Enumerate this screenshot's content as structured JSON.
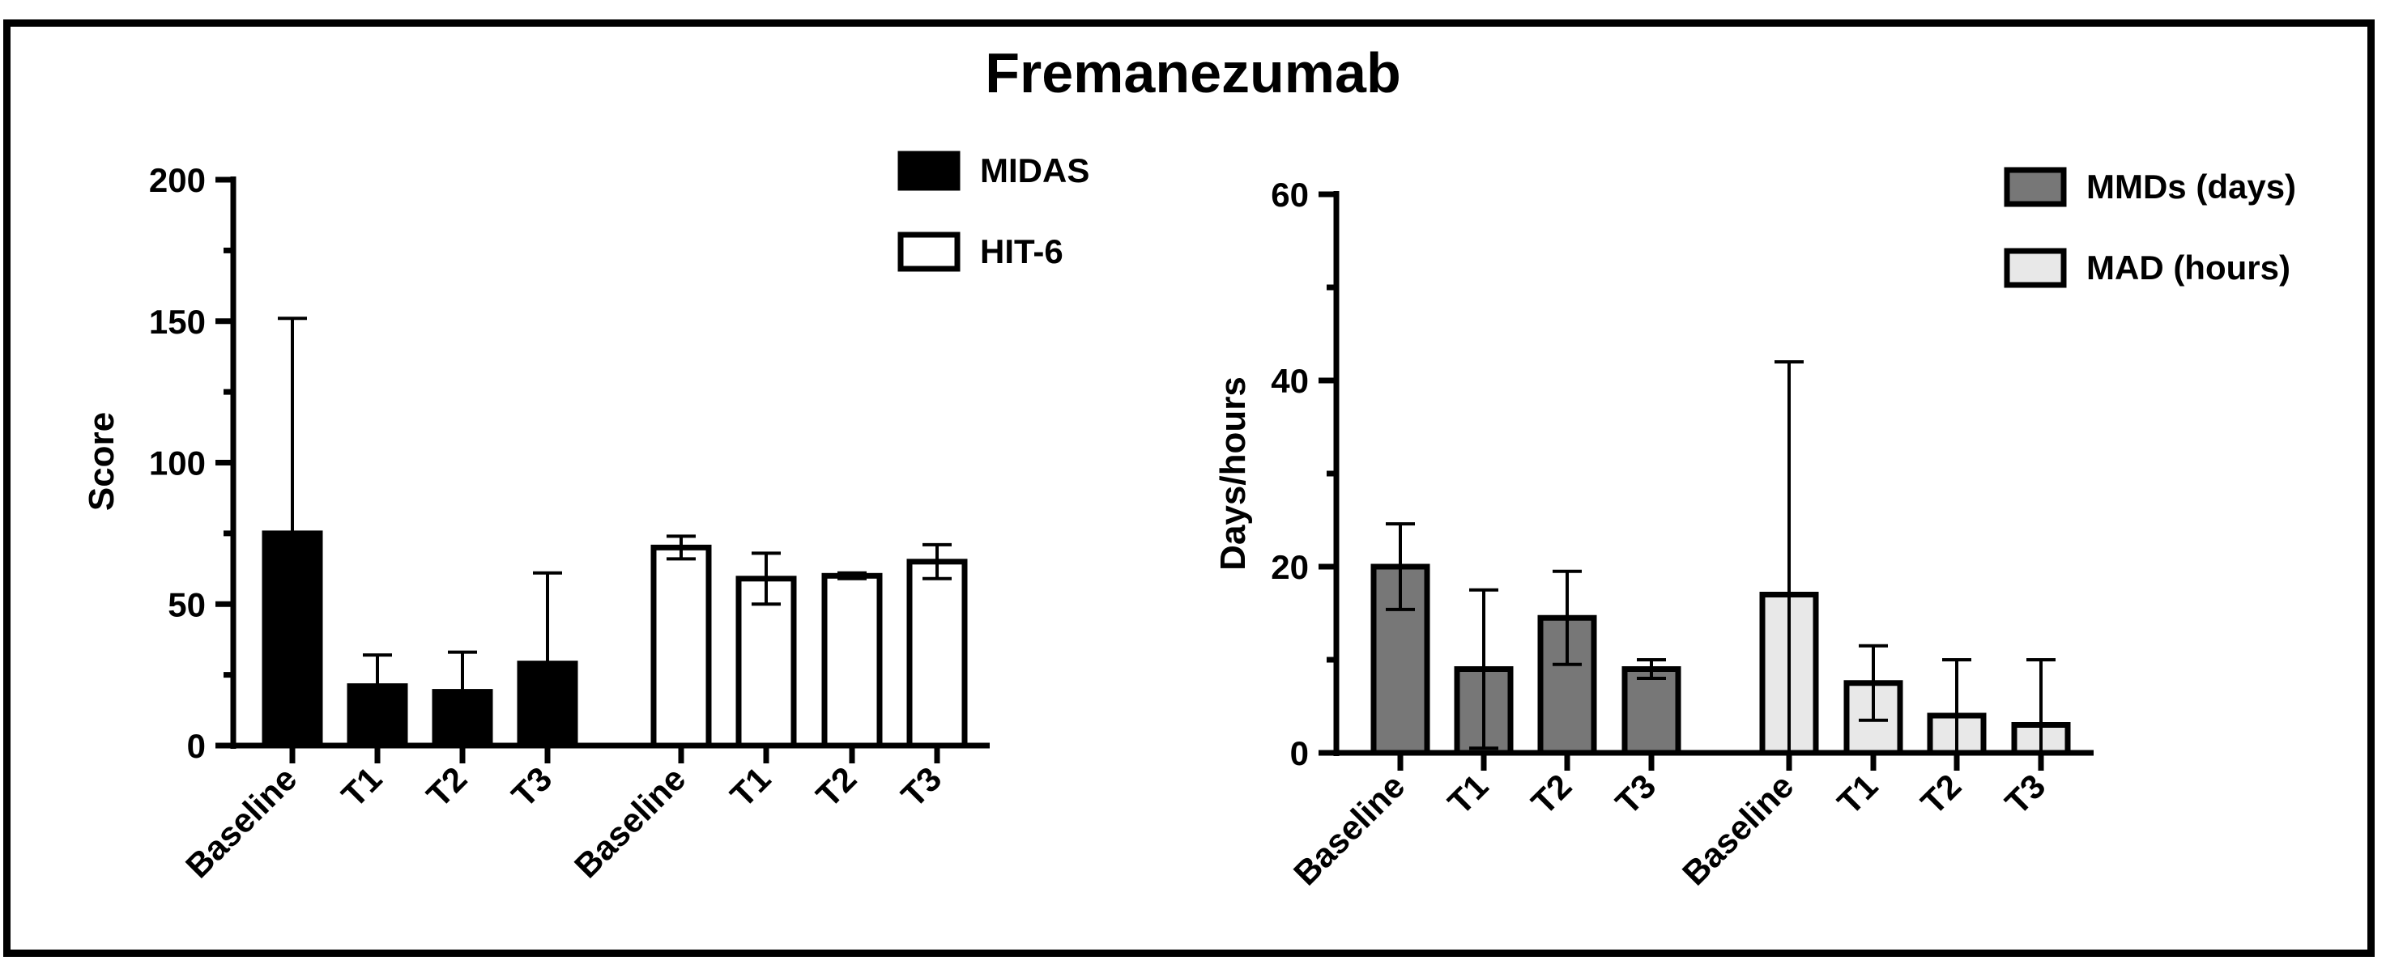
{
  "figure": {
    "title": "Fremanezumab",
    "colors": {
      "MIDAS": "#000000",
      "HIT-6": "#ffffff",
      "MMDs (days)": "#777777",
      "MAD (hours)": "#e8e8e8"
    }
  },
  "chart_data": [
    {
      "type": "bar",
      "title": "",
      "xlabel": "",
      "ylabel": "Score",
      "ylim": [
        0,
        200
      ],
      "yticks": [
        "0",
        "50",
        "100",
        "150",
        "200"
      ],
      "legend_position": "top-right",
      "categories": [
        "Baseline",
        "T1",
        "T2",
        "T3"
      ],
      "series": [
        {
          "name": "MIDAS",
          "values": [
            75,
            21,
            19,
            29
          ],
          "error": [
            76,
            11,
            14,
            32
          ]
        },
        {
          "name": "HIT-6",
          "values": [
            70,
            59,
            60,
            65
          ],
          "error": [
            4,
            9,
            1,
            6
          ]
        }
      ]
    },
    {
      "type": "bar",
      "title": "",
      "xlabel": "",
      "ylabel": "Days/hours",
      "ylim": [
        0,
        60
      ],
      "yticks": [
        "0",
        "20",
        "40",
        "60"
      ],
      "legend_position": "top-right",
      "categories": [
        "Baseline",
        "T1",
        "T2",
        "T3"
      ],
      "series": [
        {
          "name": "MMDs (days)",
          "values": [
            20,
            9,
            14.5,
            9
          ],
          "error": [
            4.6,
            8.5,
            5,
            1
          ]
        },
        {
          "name": "MAD (hours)",
          "values": [
            17,
            7.5,
            4,
            3
          ],
          "error": [
            25,
            4,
            6,
            7
          ]
        }
      ]
    }
  ]
}
